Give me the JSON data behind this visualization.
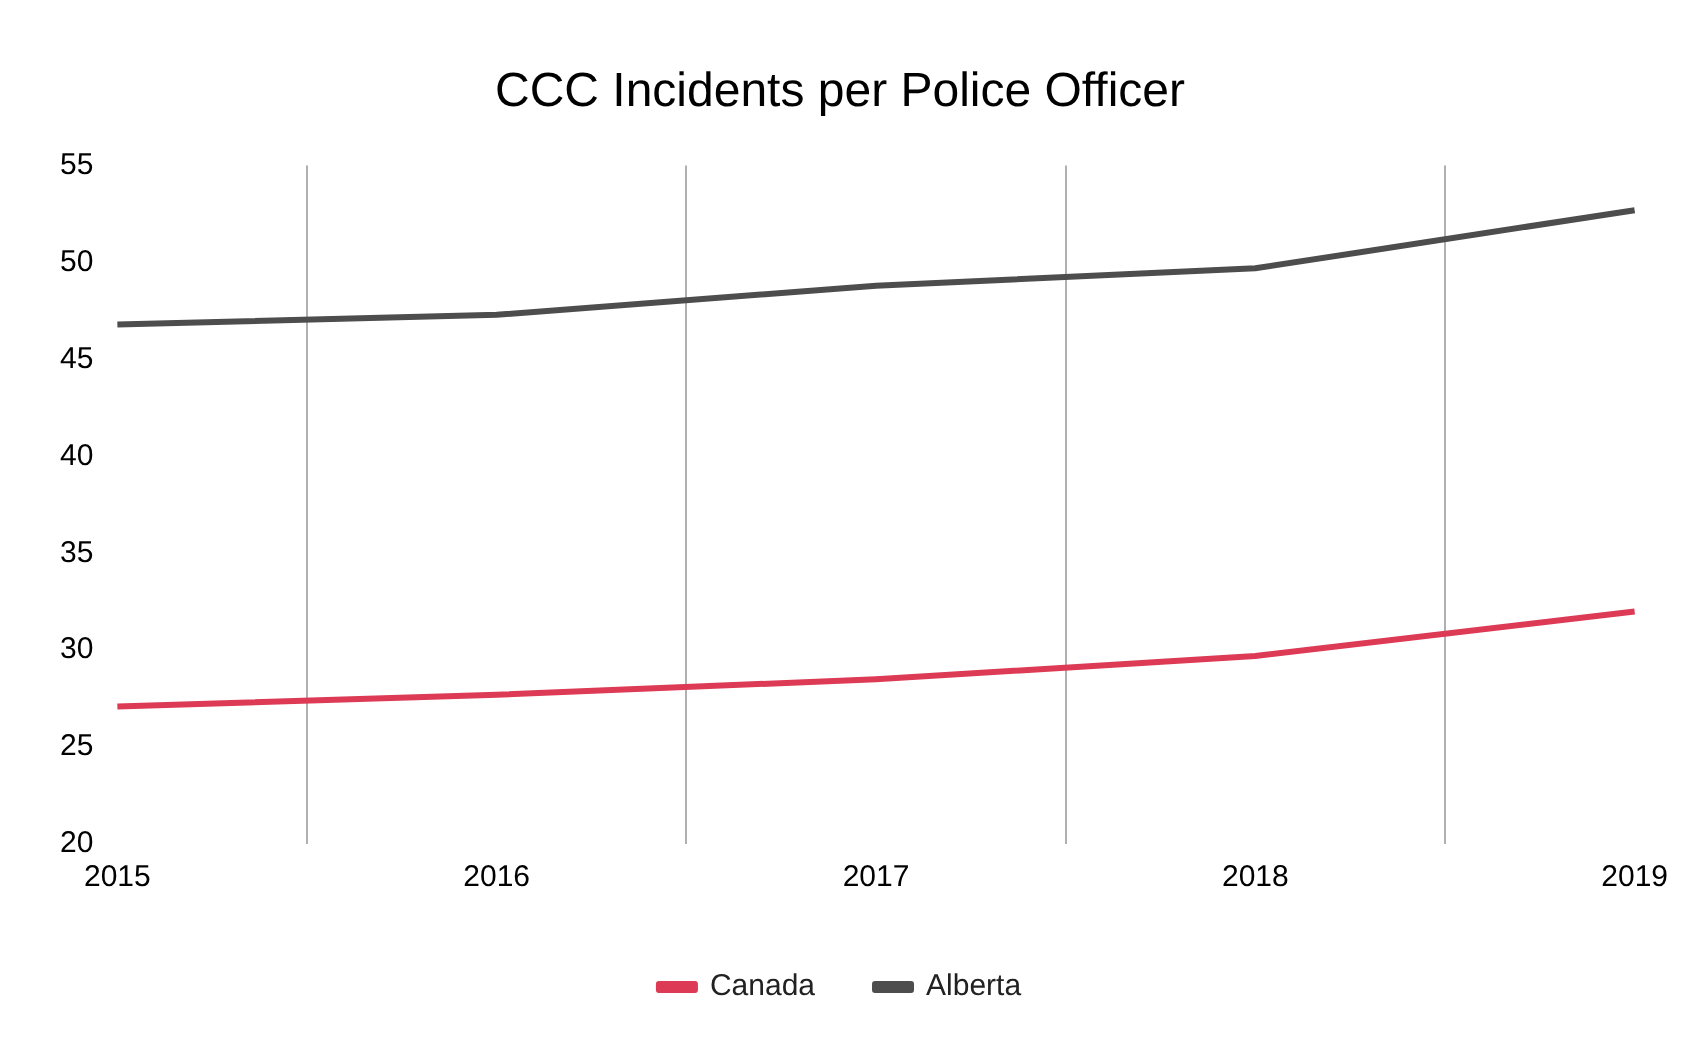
{
  "chart_data": {
    "type": "line",
    "title": "CCC Incidents per Police Officer",
    "categories": [
      "2015",
      "2016",
      "2017",
      "2018",
      "2019"
    ],
    "series": [
      {
        "name": "Canada",
        "color": "#dc3a55",
        "values": [
          27.1,
          27.7,
          28.5,
          29.7,
          32.0
        ]
      },
      {
        "name": "Alberta",
        "color": "#4d4d4d",
        "values": [
          46.8,
          47.3,
          48.8,
          49.7,
          52.7
        ]
      }
    ],
    "ylim": [
      20,
      55
    ],
    "yticks": [
      20,
      25,
      30,
      35,
      40,
      45,
      50,
      55
    ],
    "grid": "x",
    "legend": "bottom",
    "marker": "none",
    "line_style": "solid"
  }
}
